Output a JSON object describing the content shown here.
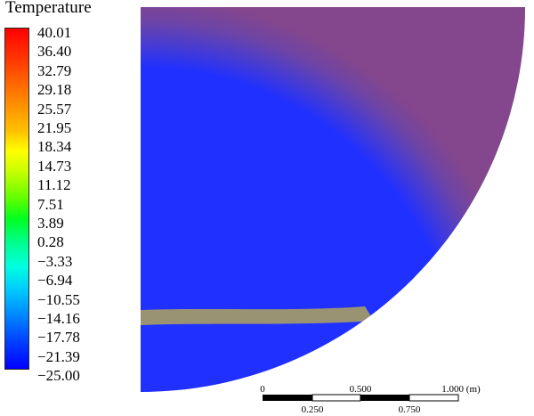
{
  "legend": {
    "title": "Temperature",
    "labels": [
      "40.01",
      "36.40",
      "32.79",
      "29.18",
      "25.57",
      "21.95",
      "18.34",
      "14.73",
      "11.12",
      "7.51",
      "3.89",
      "0.28",
      "−3.33",
      "−6.94",
      "−10.55",
      "−14.16",
      "−17.78",
      "−21.39",
      "−25.00"
    ]
  },
  "scale_bar": {
    "top_labels": [
      "0",
      "0.500",
      "1.000 (m)"
    ],
    "bottom_labels": [
      "0.250",
      "0.750"
    ]
  },
  "colors": {
    "max": "#ff0000",
    "mid": "#ffff00",
    "green": "#00ff20",
    "cyan": "#00ffe0",
    "min": "#0000ff"
  }
}
